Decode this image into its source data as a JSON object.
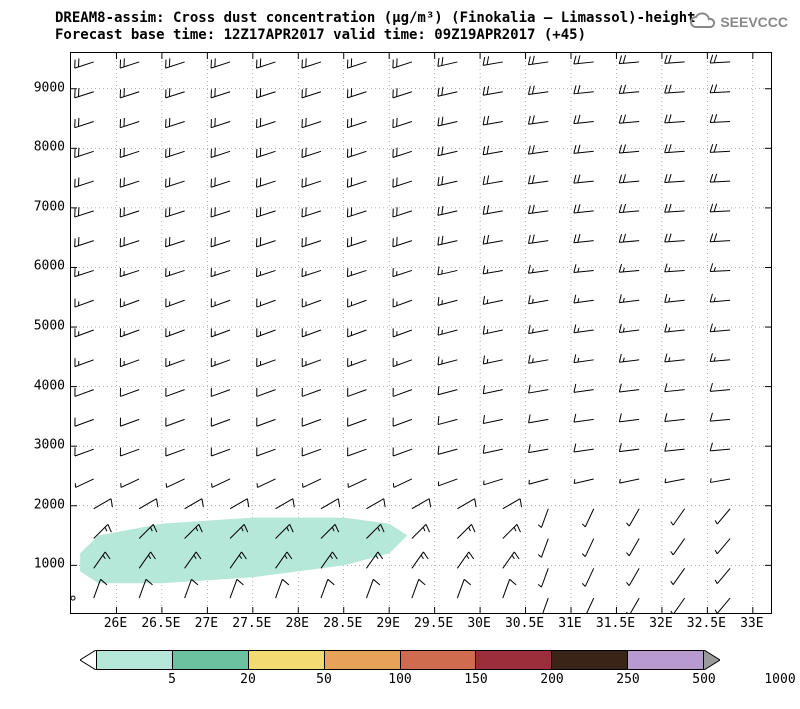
{
  "title": {
    "line1": "DREAM8-assim: Cross dust concentration (µg/m³) (Finokalia – Limassol)-height",
    "line2": "Forecast base time: 12Z17APR2017    valid time: 09Z19APR2017 (+45)"
  },
  "logo_text": "SEEVCCC",
  "plot": {
    "type": "cross-section-wind-barbs",
    "xlim": [
      25.5,
      33.2
    ],
    "ylim": [
      200,
      9600
    ],
    "xticks": [
      26,
      26.5,
      27,
      27.5,
      28,
      28.5,
      29,
      29.5,
      30,
      30.5,
      31,
      31.5,
      32,
      32.5,
      33
    ],
    "xtick_labels": [
      "26E",
      "26.5E",
      "27E",
      "27.5E",
      "28E",
      "28.5E",
      "29E",
      "29.5E",
      "30E",
      "30.5E",
      "31E",
      "31.5E",
      "32E",
      "32.5E",
      "33E"
    ],
    "yticks": [
      1000,
      2000,
      3000,
      4000,
      5000,
      6000,
      7000,
      8000,
      9000
    ],
    "ytick_labels": [
      "1000",
      "2000",
      "3000",
      "4000",
      "5000",
      "6000",
      "7000",
      "8000",
      "9000"
    ],
    "grid_x": [
      26,
      26.5,
      27,
      27.5,
      28,
      28.5,
      29,
      29.5,
      30,
      30.5,
      31,
      31.5,
      32,
      32.5,
      33
    ],
    "grid_y": [
      1000,
      2000,
      3000,
      4000,
      5000,
      6000,
      7000,
      8000,
      9000
    ],
    "grid_color": "#666666",
    "grid_dash": "1,3",
    "contour": {
      "fill_color": "#b6e8d9",
      "polygon_xy": [
        [
          25.6,
          900
        ],
        [
          25.8,
          700
        ],
        [
          26.5,
          700
        ],
        [
          27.5,
          800
        ],
        [
          28.5,
          1000
        ],
        [
          29.0,
          1200
        ],
        [
          29.2,
          1500
        ],
        [
          29.0,
          1700
        ],
        [
          28.5,
          1800
        ],
        [
          27.5,
          1800
        ],
        [
          26.5,
          1700
        ],
        [
          25.8,
          1500
        ],
        [
          25.6,
          1200
        ]
      ]
    },
    "barbs": {
      "x_start": 25.75,
      "x_step": 0.5,
      "x_count": 16,
      "y_start": 450,
      "y_step": 500,
      "y_count": 19,
      "color": "#000000",
      "shaft_len": 20,
      "default": {
        "dir_deg": 250,
        "flags": 0,
        "full": 1,
        "half": 1
      },
      "rows_override": {
        "0": {
          "dir_deg": 20,
          "full": 1,
          "half": 0
        },
        "1": {
          "dir_deg": 35,
          "full": 1,
          "half": 1
        },
        "2": {
          "dir_deg": 45,
          "full": 1,
          "half": 1
        },
        "3": {
          "dir_deg": 60,
          "full": 1,
          "half": 0
        },
        "4": {
          "dir_deg": 245,
          "full": 0,
          "half": 1
        },
        "5": {
          "dir_deg": 250,
          "full": 1,
          "half": 0
        },
        "6": {
          "dir_deg": 250,
          "full": 1,
          "half": 0
        },
        "7": {
          "dir_deg": 250,
          "full": 1,
          "half": 0
        },
        "8": {
          "dir_deg": 250,
          "full": 1,
          "half": 1
        },
        "9": {
          "dir_deg": 250,
          "full": 1,
          "half": 1
        },
        "10": {
          "dir_deg": 250,
          "full": 1,
          "half": 1
        },
        "11": {
          "dir_deg": 252,
          "full": 1,
          "half": 1
        },
        "12": {
          "dir_deg": 252,
          "full": 2,
          "half": 0
        },
        "13": {
          "dir_deg": 252,
          "full": 2,
          "half": 0
        },
        "14": {
          "dir_deg": 252,
          "full": 2,
          "half": 0
        },
        "15": {
          "dir_deg": 252,
          "full": 2,
          "half": 0
        },
        "16": {
          "dir_deg": 252,
          "full": 2,
          "half": 0
        },
        "17": {
          "dir_deg": 252,
          "full": 2,
          "half": 0
        },
        "18": {
          "dir_deg": 252,
          "full": 2,
          "half": 0
        }
      },
      "col_dir_offset": {
        "8": 5,
        "9": 8,
        "10": 10,
        "11": 12,
        "12": 13,
        "13": 14,
        "14": 15,
        "15": 15
      },
      "lowlevel_east_override": {
        "rows": [
          0,
          1,
          2,
          3
        ],
        "from_col": 10,
        "full": 0,
        "half": 1,
        "dir_deg": 200
      }
    }
  },
  "colorbar": {
    "colors": [
      "#ffffff",
      "#b6e8d9",
      "#6cc2a0",
      "#f3da72",
      "#e7a35a",
      "#cf6b4f",
      "#9b2e3a",
      "#3a2418",
      "#b79ad0",
      "#9a9a9a"
    ],
    "edges": [
      5,
      20,
      50,
      100,
      150,
      200,
      250,
      500,
      1000
    ],
    "triangle_left_color": "#ffffff",
    "triangle_right_color": "#9a9a9a",
    "label_fontsize": 13
  },
  "fonts": {
    "title_fontsize": 14,
    "tick_fontsize": 13
  },
  "background_color": "#ffffff"
}
